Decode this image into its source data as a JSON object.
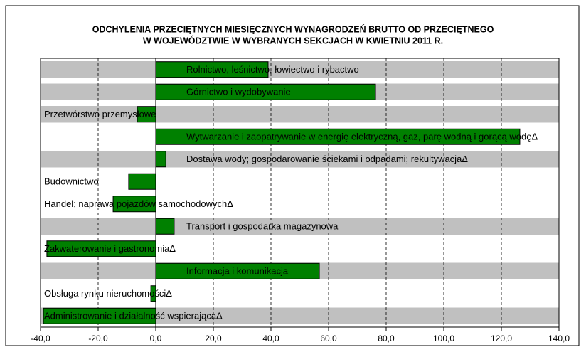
{
  "chart_data": {
    "type": "hbar",
    "title": [
      "ODCHYLENIA PRZECIĘTNYCH MIESIĘCZNYCH WYNAGRODZEŃ BRUTTO OD PRZECIĘTNEGO",
      "W WOJEWÓDZTWIE W WYBRANYCH SEKCJACH W KWIETNIU 2011 R."
    ],
    "categories": [
      "Rolnictwo, leśnictwo, łowiectwo i rybactwo",
      "Górnictwo i wydobywanie",
      "Przetwórstwo przemysłowe",
      "Wytwarzanie i zaopatrywanie w energię elektryczną, gaz, parę wodną i gorącą wodęΔ",
      "Dostawa wody; gospodarowanie ściekami i odpadami; rekultywacjaΔ",
      "Budownictwo",
      "Handel; naprawa pojazdów samochodowychΔ",
      "Transport i gospodarka magazynowa",
      "Zakwaterowanie i gastronomiaΔ",
      "Informacja i komunikacja",
      "Obsługa rynku nieruchomościΔ",
      "Administrowanie i działalność wspierającaΔ"
    ],
    "values": [
      39.0,
      76.3,
      -6.4,
      126.4,
      3.5,
      -9.4,
      -14.8,
      6.4,
      -37.8,
      56.8,
      -1.7,
      -39.0
    ],
    "color": "#008000",
    "xlim": [
      -40,
      140
    ],
    "xticks": [
      {
        "value": -40,
        "label": "-40,0"
      },
      {
        "value": -20,
        "label": "-20,0"
      },
      {
        "value": 0,
        "label": "0,0"
      },
      {
        "value": 20,
        "label": "20,0"
      },
      {
        "value": 40,
        "label": "40,0"
      },
      {
        "value": 60,
        "label": "60,0"
      },
      {
        "value": 80,
        "label": "80,0"
      },
      {
        "value": 100,
        "label": "100,0"
      },
      {
        "value": 120,
        "label": "120,0"
      },
      {
        "value": 140,
        "label": "140,0"
      }
    ],
    "grid": true
  }
}
